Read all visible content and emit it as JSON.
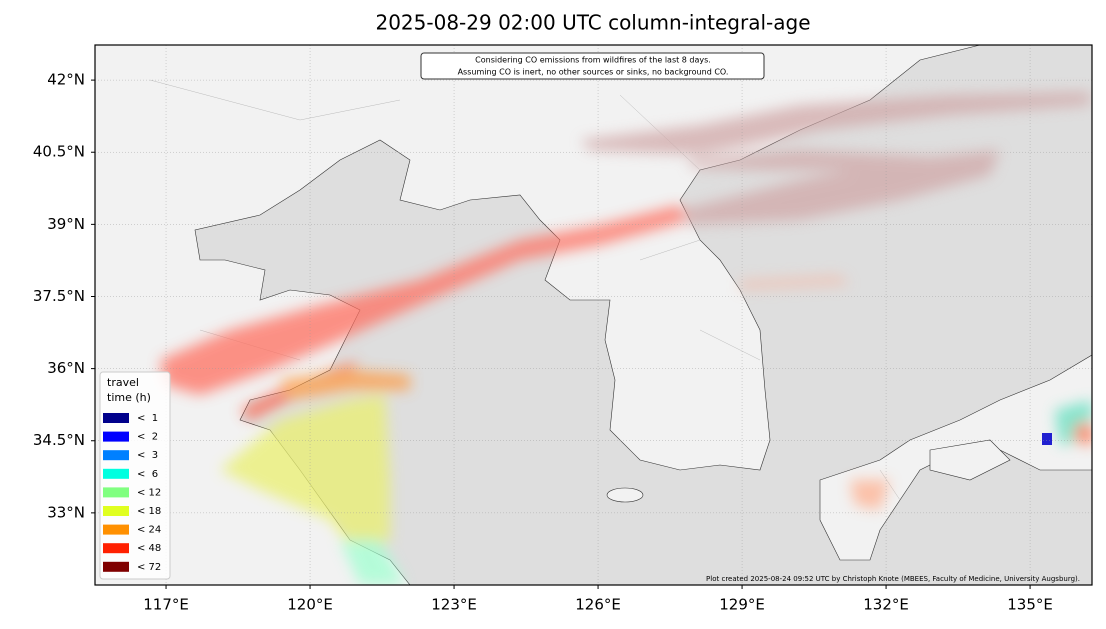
{
  "header": {
    "title": "2025-08-29 02:00 UTC column-integral-age"
  },
  "annotation": [
    "Considering CO emissions from wildfires of the last 8 days.",
    "Assuming CO is inert, no other sources or sinks, no background CO."
  ],
  "credit": "Plot created 2025-08-24 09:52 UTC by Christoph Knote (MBEES, Faculty of Medicine, University Augsburg).",
  "map": {
    "xlim": [
      115.52,
      136.29
    ],
    "ylim": [
      31.5,
      42.73
    ],
    "xticks": [
      {
        "value": 117,
        "label": "117°E"
      },
      {
        "value": 120,
        "label": "120°E"
      },
      {
        "value": 123,
        "label": "123°E"
      },
      {
        "value": 126,
        "label": "126°E"
      },
      {
        "value": 129,
        "label": "129°E"
      },
      {
        "value": 132,
        "label": "132°E"
      },
      {
        "value": 135,
        "label": "135°E"
      }
    ],
    "yticks": [
      {
        "value": 42,
        "label": "42°N"
      },
      {
        "value": 40.5,
        "label": "40.5°N"
      },
      {
        "value": 39,
        "label": "39°N"
      },
      {
        "value": 37.5,
        "label": "37.5°N"
      },
      {
        "value": 36,
        "label": "36°N"
      },
      {
        "value": 34.5,
        "label": "34.5°N"
      },
      {
        "value": 33,
        "label": "33°N"
      }
    ]
  },
  "legend": {
    "title": [
      "travel",
      "time (h)"
    ],
    "items": [
      {
        "label": "<  1",
        "color": "#00008b"
      },
      {
        "label": "<  2",
        "color": "#0000ff"
      },
      {
        "label": "<  3",
        "color": "#0080ff"
      },
      {
        "label": "<  6",
        "color": "#00ffe0"
      },
      {
        "label": "< 12",
        "color": "#80ff80"
      },
      {
        "label": "< 18",
        "color": "#e0ff20"
      },
      {
        "label": "< 24",
        "color": "#ff9000"
      },
      {
        "label": "< 48",
        "color": "#ff2000"
      },
      {
        "label": "< 72",
        "color": "#800000"
      }
    ]
  }
}
